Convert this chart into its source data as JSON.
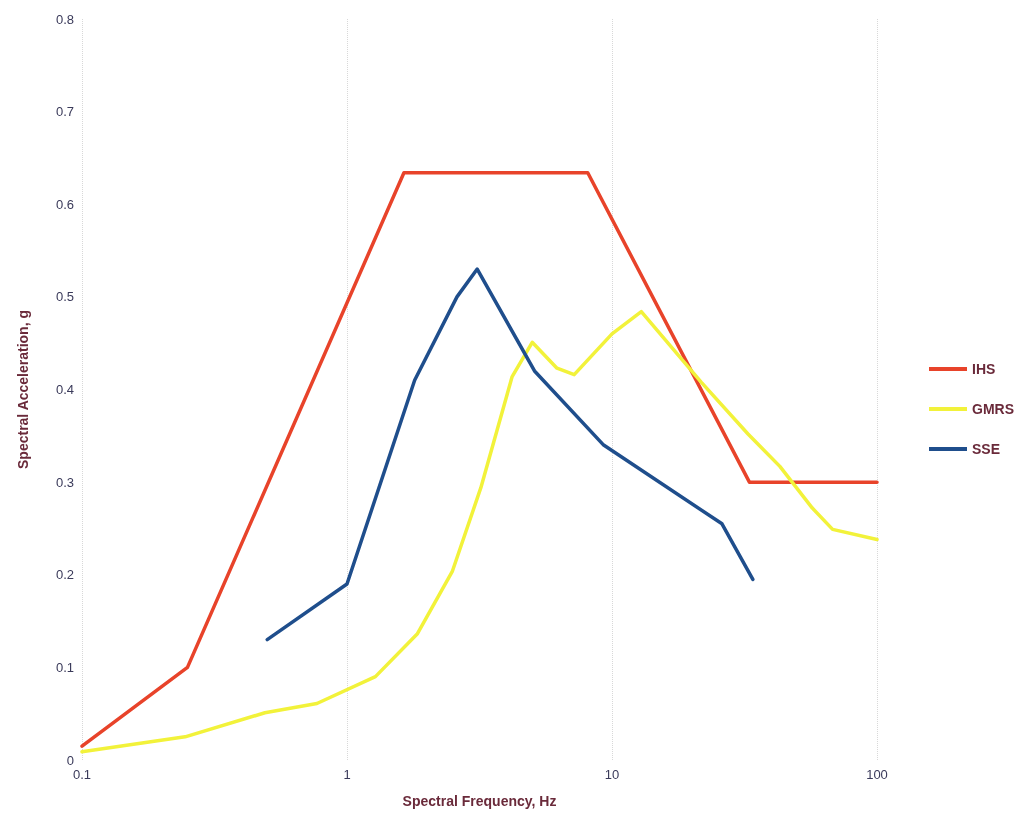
{
  "chart_data": {
    "type": "line",
    "xlabel": "Spectral Frequency, Hz",
    "ylabel": "Spectral Acceleration, g",
    "log": "x",
    "grid": "x",
    "legend": "right",
    "marker": "none",
    "line_style": "solid",
    "xlim": [
      0.1,
      100
    ],
    "xticks": [
      0.1,
      1,
      10,
      100
    ],
    "ylim": [
      0,
      0.8
    ],
    "yticks": [
      0,
      0.1,
      0.2,
      0.3,
      0.4,
      0.5,
      0.6,
      0.7,
      0.8
    ],
    "series": [
      {
        "name": "IHS",
        "color": "#e8432a",
        "x": [
          0.1,
          0.25,
          1.64,
          8.1,
          33,
          100
        ],
        "values": [
          0.015,
          0.1,
          0.634,
          0.634,
          0.3,
          0.3
        ]
      },
      {
        "name": "GMRS",
        "color": "#f2f23a",
        "x": [
          0.1,
          0.245,
          0.49,
          0.77,
          1.28,
          1.84,
          2.5,
          3.2,
          4.2,
          5.0,
          6.2,
          7.2,
          10,
          12.9,
          21.7,
          32.6,
          43,
          57,
          68,
          100
        ],
        "values": [
          0.009,
          0.025,
          0.051,
          0.061,
          0.09,
          0.136,
          0.204,
          0.294,
          0.414,
          0.451,
          0.423,
          0.416,
          0.46,
          0.484,
          0.408,
          0.352,
          0.317,
          0.272,
          0.249,
          0.238
        ]
      },
      {
        "name": "SSE",
        "color": "#1f4e8c",
        "x": [
          0.5,
          1,
          1.8,
          2.6,
          3.1,
          5.1,
          9.3,
          26,
          34
        ],
        "values": [
          0.13,
          0.19,
          0.41,
          0.5,
          0.53,
          0.42,
          0.34,
          0.255,
          0.195
        ]
      }
    ]
  }
}
